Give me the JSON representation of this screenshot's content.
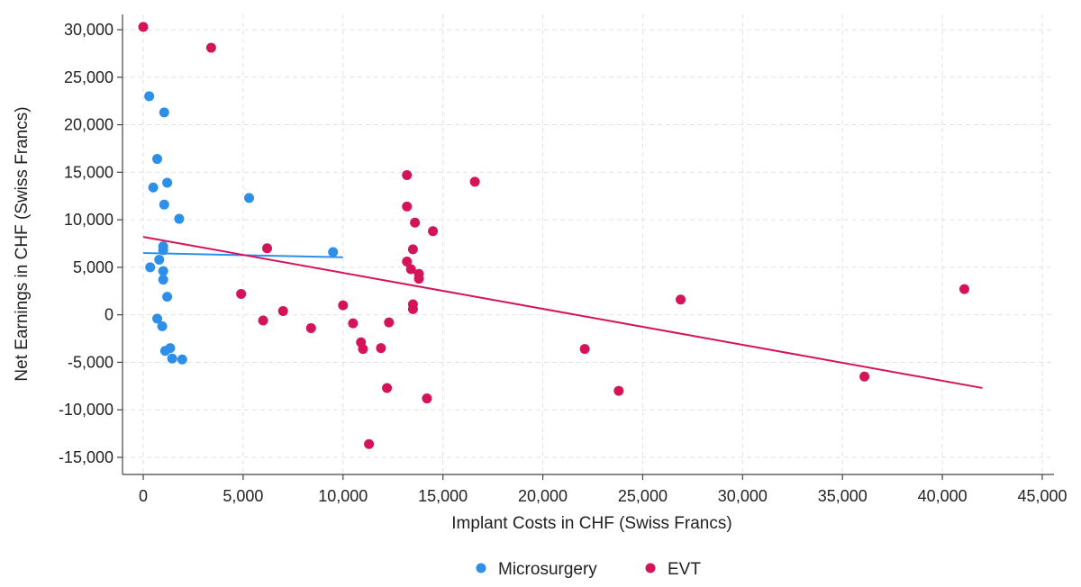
{
  "chart_data": {
    "type": "scatter",
    "title": "",
    "xlabel": "Implant Costs in CHF (Swiss Francs)",
    "ylabel": "Net Earnings in CHF (Swiss Francs)",
    "xlim": [
      0,
      45000
    ],
    "ylim": [
      -15000,
      30000
    ],
    "x_ticks": [
      0,
      5000,
      10000,
      15000,
      20000,
      25000,
      30000,
      35000,
      40000,
      45000
    ],
    "y_ticks": [
      -15000,
      -10000,
      -5000,
      0,
      5000,
      10000,
      15000,
      20000,
      25000,
      30000
    ],
    "x_tick_labels": [
      "0",
      "5,000",
      "10,000",
      "15,000",
      "20,000",
      "25,000",
      "30,000",
      "35,000",
      "40,000",
      "45,000"
    ],
    "y_tick_labels": [
      "-15,000",
      "-10,000",
      "-5,000",
      "0",
      "5,000",
      "10,000",
      "15,000",
      "20,000",
      "25,000",
      "30,000"
    ],
    "grid": true,
    "legend_position": "bottom",
    "series": [
      {
        "name": "Microsurgery",
        "color": "#2e8fe8",
        "points": [
          [
            300,
            23000
          ],
          [
            1050,
            21300
          ],
          [
            700,
            16400
          ],
          [
            1200,
            13900
          ],
          [
            500,
            13400
          ],
          [
            1050,
            11600
          ],
          [
            1800,
            10100
          ],
          [
            5300,
            12300
          ],
          [
            9500,
            6600
          ],
          [
            1000,
            7200
          ],
          [
            1000,
            6800
          ],
          [
            800,
            5800
          ],
          [
            350,
            5000
          ],
          [
            1000,
            4600
          ],
          [
            1000,
            3700
          ],
          [
            1200,
            1900
          ],
          [
            700,
            -400
          ],
          [
            950,
            -1200
          ],
          [
            1350,
            -3500
          ],
          [
            1100,
            -3800
          ],
          [
            1450,
            -4600
          ],
          [
            1950,
            -4700
          ]
        ],
        "fit_line": [
          [
            0,
            6500
          ],
          [
            10000,
            6050
          ]
        ]
      },
      {
        "name": "EVT",
        "color": "#d4145a",
        "points": [
          [
            0,
            30300
          ],
          [
            3400,
            28100
          ],
          [
            13200,
            14700
          ],
          [
            16600,
            14000
          ],
          [
            13200,
            11400
          ],
          [
            13600,
            9700
          ],
          [
            14500,
            8800
          ],
          [
            6200,
            7000
          ],
          [
            13500,
            6900
          ],
          [
            13200,
            5600
          ],
          [
            13400,
            4800
          ],
          [
            13800,
            4300
          ],
          [
            13800,
            3800
          ],
          [
            4900,
            2200
          ],
          [
            13500,
            1100
          ],
          [
            13500,
            600
          ],
          [
            10000,
            1000
          ],
          [
            7000,
            400
          ],
          [
            6000,
            -600
          ],
          [
            10500,
            -900
          ],
          [
            12300,
            -800
          ],
          [
            8400,
            -1400
          ],
          [
            10900,
            -2900
          ],
          [
            11000,
            -3600
          ],
          [
            11900,
            -3500
          ],
          [
            22100,
            -3600
          ],
          [
            26900,
            1600
          ],
          [
            41100,
            2700
          ],
          [
            36100,
            -6500
          ],
          [
            23800,
            -8000
          ],
          [
            12200,
            -7700
          ],
          [
            14200,
            -8800
          ],
          [
            11300,
            -13600
          ]
        ],
        "fit_line": [
          [
            0,
            8200
          ],
          [
            42000,
            -7700
          ]
        ]
      }
    ]
  }
}
